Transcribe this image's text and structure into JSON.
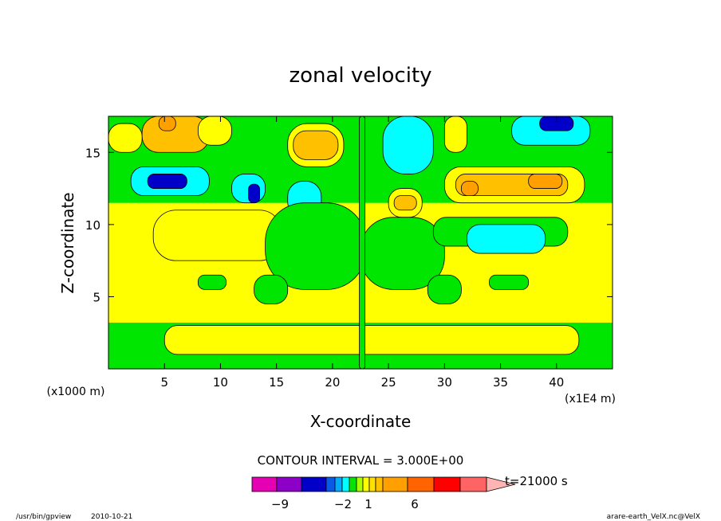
{
  "chart_data": {
    "type": "heatmap",
    "title": "zonal velocity",
    "xlabel": "X-coordinate",
    "ylabel": "Z-coordinate",
    "x_unit_label": "(x1000 m)",
    "x_unit_label_right": "(x1E4 m)",
    "xlim": [
      0,
      45
    ],
    "ylim": [
      0,
      17.5
    ],
    "x_ticks": [
      5,
      10,
      15,
      20,
      25,
      30,
      35,
      40
    ],
    "x_tick_labels": [
      "5",
      "10",
      "15",
      "20",
      "25",
      "30",
      "35",
      "40"
    ],
    "y_ticks": [
      5,
      10,
      15
    ],
    "y_tick_labels": [
      "5",
      "10",
      "15"
    ],
    "contour_interval_text": "CONTOUR INTERVAL = 3.000E+00",
    "time_label": "t=21000 s",
    "colorbar_labels": [
      {
        "value": -9,
        "text": "−9"
      },
      {
        "value": -2,
        "text": "−2"
      },
      {
        "value": 1,
        "text": "1"
      },
      {
        "value": 6,
        "text": "6"
      }
    ],
    "colorbar_levels": [
      {
        "level": -11,
        "color": "#e600b4"
      },
      {
        "level": -9,
        "color": "#8c00c8"
      },
      {
        "level": -6,
        "color": "#0000c8"
      },
      {
        "level": -3,
        "color": "#0a5ae6"
      },
      {
        "level": -2,
        "color": "#00aaff"
      },
      {
        "level": -1,
        "color": "#00ffff"
      },
      {
        "level": 0,
        "color": "#00e600"
      },
      {
        "level": 0.5,
        "color": "#aaff00"
      },
      {
        "level": 1,
        "color": "#ffff00"
      },
      {
        "level": 2,
        "color": "#ffe000"
      },
      {
        "level": 3,
        "color": "#ffc000"
      },
      {
        "level": 4,
        "color": "#ffa000"
      },
      {
        "level": 6,
        "color": "#ff6400"
      },
      {
        "level": 9,
        "color": "#ff0000"
      },
      {
        "level": 12,
        "color": "#ff6464"
      },
      {
        "level": 15,
        "color": "#ffb4b4"
      }
    ],
    "field_colors": {
      "dark_blue": "#0000c8",
      "cyan": "#00ffff",
      "green": "#00e600",
      "yellow": "#ffff00",
      "light_orange": "#ffc000",
      "orange": "#ffa000"
    },
    "regions": [
      {
        "x": [
          0,
          45
        ],
        "z": [
          0,
          17.5
        ],
        "color_key": "yellow"
      },
      {
        "x": [
          0,
          45
        ],
        "z": [
          11.5,
          17.5
        ],
        "color_key": "green"
      },
      {
        "x": [
          3,
          9
        ],
        "z": [
          15,
          17.5
        ],
        "color_key": "light_orange"
      },
      {
        "x": [
          4.5,
          6
        ],
        "z": [
          16.5,
          17.5
        ],
        "color_key": "orange"
      },
      {
        "x": [
          0,
          3
        ],
        "z": [
          15,
          17
        ],
        "color_key": "yellow"
      },
      {
        "x": [
          8,
          11
        ],
        "z": [
          15.5,
          17.5
        ],
        "color_key": "yellow"
      },
      {
        "x": [
          16,
          21
        ],
        "z": [
          14,
          17
        ],
        "color_key": "yellow"
      },
      {
        "x": [
          16.5,
          20.5
        ],
        "z": [
          14.5,
          16.5
        ],
        "color_key": "light_orange"
      },
      {
        "x": [
          24.5,
          29
        ],
        "z": [
          13.5,
          17.5
        ],
        "color_key": "cyan"
      },
      {
        "x": [
          30,
          32
        ],
        "z": [
          15,
          17.5
        ],
        "color_key": "yellow"
      },
      {
        "x": [
          36,
          43
        ],
        "z": [
          15.5,
          17.5
        ],
        "color_key": "cyan"
      },
      {
        "x": [
          38.5,
          41.5
        ],
        "z": [
          16.5,
          17.5
        ],
        "color_key": "dark_blue"
      },
      {
        "x": [
          2,
          9
        ],
        "z": [
          12,
          14
        ],
        "color_key": "cyan"
      },
      {
        "x": [
          3.5,
          7
        ],
        "z": [
          12.5,
          13.5
        ],
        "color_key": "dark_blue"
      },
      {
        "x": [
          11,
          14
        ],
        "z": [
          11.5,
          13.5
        ],
        "color_key": "cyan"
      },
      {
        "x": [
          12.5,
          13.5
        ],
        "z": [
          11.5,
          12.8
        ],
        "color_key": "dark_blue"
      },
      {
        "x": [
          16,
          19
        ],
        "z": [
          10.5,
          13
        ],
        "color_key": "cyan"
      },
      {
        "x": [
          25,
          28
        ],
        "z": [
          10.5,
          12.5
        ],
        "color_key": "yellow"
      },
      {
        "x": [
          25.5,
          27.5
        ],
        "z": [
          11,
          12
        ],
        "color_key": "light_orange"
      },
      {
        "x": [
          30,
          42.5
        ],
        "z": [
          11.5,
          14
        ],
        "color_key": "yellow"
      },
      {
        "x": [
          31,
          41
        ],
        "z": [
          12,
          13.5
        ],
        "color_key": "light_orange"
      },
      {
        "x": [
          31.5,
          33
        ],
        "z": [
          12,
          13
        ],
        "color_key": "orange"
      },
      {
        "x": [
          37.5,
          40.5
        ],
        "z": [
          12.5,
          13.5
        ],
        "color_key": "orange"
      },
      {
        "x": [
          5,
          14
        ],
        "z": [
          8,
          10.5
        ],
        "color_key": "light_orange"
      },
      {
        "x": [
          4,
          15.5
        ],
        "z": [
          7.5,
          11
        ],
        "color_key": "yellow"
      },
      {
        "x": [
          14,
          23
        ],
        "z": [
          5.5,
          11.5
        ],
        "color_key": "green"
      },
      {
        "x": [
          22.5,
          30
        ],
        "z": [
          5.5,
          10.5
        ],
        "color_key": "green"
      },
      {
        "x": [
          29,
          41
        ],
        "z": [
          8.5,
          10.5
        ],
        "color_key": "green"
      },
      {
        "x": [
          32,
          39
        ],
        "z": [
          8,
          10
        ],
        "color_key": "cyan"
      },
      {
        "x": [
          0,
          45
        ],
        "z": [
          0,
          3.2
        ],
        "color_key": "green"
      },
      {
        "x": [
          5,
          42
        ],
        "z": [
          1,
          3
        ],
        "color_key": "yellow"
      },
      {
        "x": [
          8,
          10.5
        ],
        "z": [
          5.5,
          6.5
        ],
        "color_key": "green"
      },
      {
        "x": [
          13,
          16
        ],
        "z": [
          4.5,
          6.5
        ],
        "color_key": "green"
      },
      {
        "x": [
          28.5,
          31.5
        ],
        "z": [
          4.5,
          6.5
        ],
        "color_key": "green"
      },
      {
        "x": [
          34,
          37.5
        ],
        "z": [
          5.5,
          6.5
        ],
        "color_key": "green"
      },
      {
        "x": [
          22.4,
          22.9
        ],
        "z": [
          0,
          17.5
        ],
        "color_key": "green"
      }
    ]
  },
  "footer": {
    "program": "/usr/bin/gpview",
    "date": "2010-10-21",
    "source": "arare-earth_VelX.nc@VelX"
  }
}
